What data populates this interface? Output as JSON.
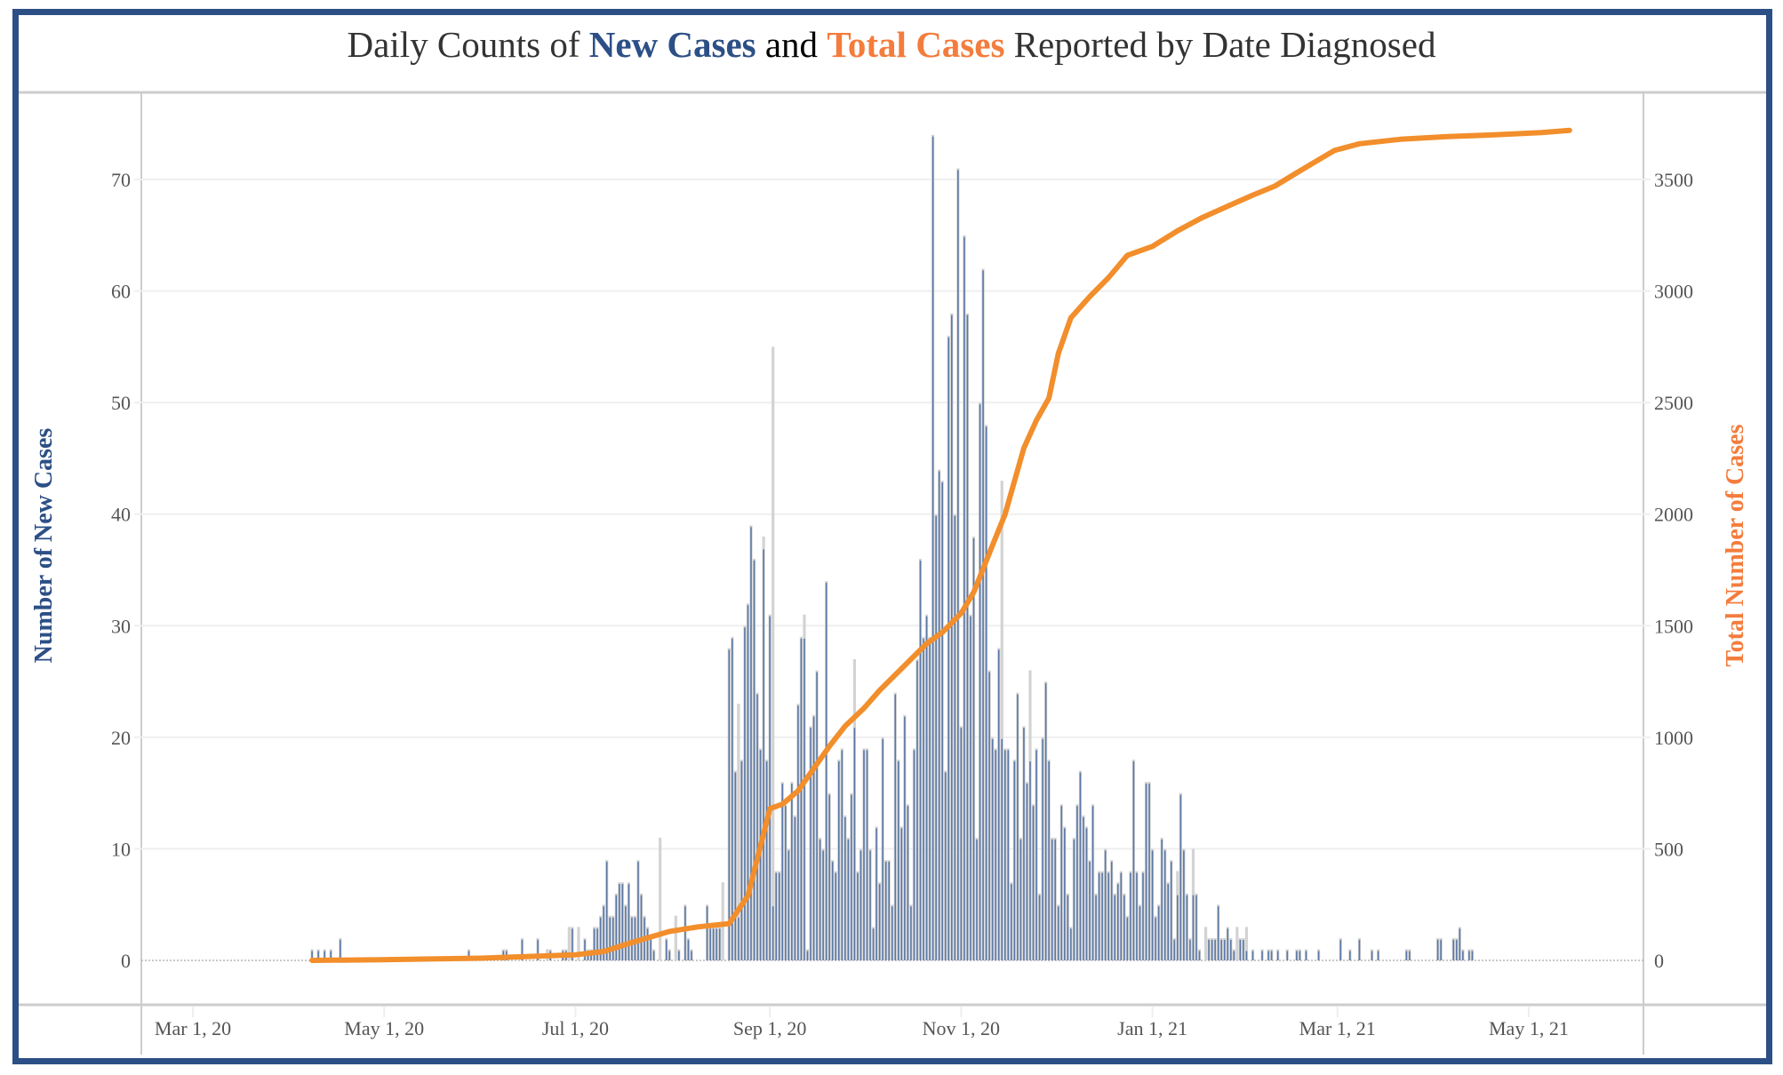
{
  "chart_data": {
    "type": "bar+line",
    "title": {
      "prefix": "Daily Counts of ",
      "new_cases": "New Cases",
      "and": " and ",
      "total_cases": "Total Cases",
      "suffix": " Reported by Date Diagnosed"
    },
    "ylabel_left": "Number of New Cases",
    "ylabel_right": "Total Number of Cases",
    "ylim_left": [
      -7,
      74
    ],
    "ylim_right": [
      -350,
      3700
    ],
    "yticks_left": [
      "0",
      "10",
      "20",
      "30",
      "40",
      "50",
      "60",
      "70"
    ],
    "yticks_right": [
      "0",
      "500",
      "1000",
      "1500",
      "2000",
      "2500",
      "3000",
      "3500"
    ],
    "xticks": [
      "Mar 1, 20",
      "May 1, 20",
      "Jul 1, 20",
      "Sep 1, 20",
      "Nov 1, 20",
      "Jan 1, 21",
      "Mar 1, 21",
      "May 1, 21"
    ],
    "xtick_day_offsets": [
      0,
      61,
      122,
      184,
      245,
      306,
      365,
      426
    ],
    "x_origin": "2020-03-01",
    "grid": true,
    "colors": {
      "new_cases_bar": "#5b78a6",
      "bar_background": "#d3d3d3",
      "total_line": "#f28e2b",
      "title_blue": "#2c4f86",
      "title_orange": "#f47c3c",
      "frame": "#2c4f86"
    },
    "series": [
      {
        "name": "New Cases",
        "kind": "bar",
        "start_day_offset": 38,
        "values": [
          1,
          0,
          1,
          0,
          1,
          0,
          1,
          0,
          0,
          2,
          0,
          0,
          0,
          0,
          0,
          0,
          0,
          0,
          0,
          0,
          0,
          0,
          0,
          0,
          0,
          0,
          0,
          0,
          0,
          0,
          0,
          0,
          0,
          0,
          0,
          0,
          0,
          0,
          0,
          0,
          0,
          0,
          0,
          0,
          0,
          0,
          0,
          0,
          0,
          0,
          1,
          0,
          0,
          0,
          0,
          0,
          0,
          0,
          0,
          0,
          0,
          1,
          1,
          0,
          0,
          0,
          0,
          2,
          0,
          0,
          0,
          0,
          2,
          0,
          0,
          0,
          1,
          0,
          0,
          0,
          1,
          1,
          0,
          3,
          0,
          0,
          0,
          2,
          1,
          1,
          3,
          3,
          4,
          5,
          9,
          4,
          4,
          6,
          7,
          7,
          5,
          7,
          4,
          4,
          9,
          6,
          4,
          3,
          2,
          1,
          0,
          0,
          0,
          2,
          1,
          0,
          0,
          1,
          0,
          5,
          2,
          1,
          0,
          0,
          0,
          0,
          5,
          3,
          3,
          3,
          3,
          0,
          0,
          28,
          29,
          17,
          4,
          18,
          30,
          32,
          39,
          36,
          24,
          19,
          37,
          18,
          31,
          5,
          8,
          8,
          16,
          14,
          10,
          16,
          13,
          23,
          29,
          29,
          1,
          21,
          22,
          26,
          11,
          10,
          34,
          15,
          9,
          8,
          18,
          19,
          13,
          11,
          15,
          21,
          8,
          10,
          19,
          19,
          10,
          3,
          12,
          7,
          20,
          9,
          9,
          5,
          24,
          18,
          12,
          22,
          14,
          5,
          19,
          27,
          36,
          29,
          31,
          29,
          74,
          40,
          44,
          43,
          17,
          56,
          58,
          40,
          71,
          21,
          65,
          58,
          31,
          38,
          11,
          50,
          62,
          48,
          26,
          20,
          19,
          28,
          20,
          19,
          19,
          7,
          18,
          24,
          11,
          21,
          16,
          18,
          14,
          19,
          6,
          20,
          25,
          18,
          11,
          11,
          5,
          14,
          12,
          6,
          3,
          11,
          14,
          17,
          13,
          12,
          9,
          14,
          6,
          8,
          8,
          10,
          8,
          9,
          6,
          7,
          8,
          6,
          4,
          8,
          18,
          8,
          5,
          8,
          16,
          16,
          10,
          4,
          5,
          11,
          10,
          7,
          9,
          2,
          6,
          15,
          10,
          6,
          2,
          6,
          6,
          1,
          0,
          0,
          2,
          2,
          2,
          5,
          2,
          2,
          3,
          2,
          1,
          0,
          2,
          2,
          1,
          0,
          1,
          0,
          0,
          1,
          0,
          1,
          1,
          0,
          1,
          0,
          0,
          1,
          0,
          0,
          1,
          1,
          0,
          1,
          0,
          0,
          0,
          1,
          0,
          0,
          0,
          0,
          0,
          0,
          2,
          0,
          0,
          1,
          0,
          0,
          2,
          0,
          0,
          0,
          1,
          0,
          1,
          0,
          0,
          0,
          0,
          0,
          0,
          0,
          0,
          1,
          1,
          0,
          0,
          0,
          0,
          0,
          0,
          0,
          0,
          2,
          2,
          0,
          0,
          0,
          2,
          2,
          3,
          1,
          0,
          1,
          1
        ]
      },
      {
        "name": "Gray Bars",
        "kind": "bar",
        "start_day_offset": 38,
        "values": [
          1,
          0,
          1,
          0,
          1,
          0,
          1,
          0,
          0,
          2,
          0,
          0,
          0,
          0,
          0,
          0,
          0,
          0,
          0,
          0,
          0,
          0,
          0,
          0,
          0,
          0,
          0,
          0,
          0,
          0,
          0,
          0,
          0,
          0,
          0,
          0,
          0,
          0,
          0,
          0,
          0,
          0,
          0,
          0,
          0,
          0,
          0,
          0,
          0,
          0,
          1,
          0,
          0,
          0,
          0,
          0,
          0,
          0,
          0,
          0,
          0,
          1,
          1,
          0,
          0,
          0,
          0,
          2,
          0,
          0,
          0,
          0,
          2,
          0,
          0,
          1,
          1,
          0,
          0,
          0,
          1,
          1,
          3,
          3,
          0,
          3,
          0,
          2,
          1,
          1,
          3,
          3,
          4,
          5,
          9,
          4,
          4,
          6,
          7,
          7,
          5,
          7,
          4,
          4,
          9,
          6,
          4,
          3,
          2,
          1,
          0,
          11,
          0,
          2,
          1,
          0,
          4,
          1,
          0,
          5,
          2,
          1,
          0,
          0,
          0,
          0,
          5,
          3,
          3,
          3,
          3,
          7,
          0,
          28,
          29,
          17,
          23,
          18,
          30,
          32,
          39,
          36,
          24,
          19,
          38,
          18,
          31,
          55,
          8,
          8,
          16,
          14,
          10,
          16,
          13,
          23,
          29,
          31,
          1,
          21,
          22,
          26,
          11,
          10,
          34,
          15,
          9,
          8,
          18,
          19,
          13,
          11,
          15,
          27,
          8,
          10,
          19,
          19,
          10,
          3,
          12,
          7,
          20,
          9,
          9,
          5,
          24,
          18,
          12,
          22,
          14,
          5,
          19,
          27,
          36,
          29,
          31,
          29,
          74,
          40,
          44,
          43,
          17,
          56,
          58,
          40,
          71,
          21,
          65,
          58,
          31,
          38,
          11,
          50,
          62,
          48,
          26,
          20,
          19,
          28,
          43,
          19,
          19,
          7,
          18,
          24,
          11,
          21,
          16,
          26,
          14,
          19,
          6,
          20,
          25,
          18,
          11,
          11,
          5,
          14,
          12,
          6,
          3,
          11,
          14,
          17,
          13,
          12,
          9,
          14,
          6,
          8,
          8,
          10,
          8,
          9,
          6,
          7,
          8,
          6,
          4,
          8,
          18,
          8,
          5,
          8,
          16,
          16,
          10,
          4,
          5,
          11,
          10,
          7,
          9,
          2,
          8,
          15,
          10,
          6,
          2,
          10,
          6,
          1,
          0,
          3,
          2,
          2,
          2,
          5,
          2,
          2,
          3,
          2,
          1,
          3,
          2,
          2,
          3,
          0,
          1,
          0,
          0,
          1,
          0,
          1,
          1,
          0,
          1,
          0,
          0,
          1,
          0,
          0,
          1,
          1,
          0,
          1,
          0,
          0,
          0,
          1,
          0,
          0,
          0,
          0,
          0,
          0,
          2,
          0,
          0,
          1,
          0,
          0,
          2,
          0,
          0,
          0,
          1,
          0,
          1,
          0,
          0,
          0,
          0,
          0,
          0,
          0,
          0,
          1,
          1,
          0,
          0,
          0,
          0,
          0,
          0,
          0,
          0,
          2,
          2,
          0,
          0,
          0,
          2,
          2,
          3,
          1,
          0,
          1,
          1
        ]
      },
      {
        "name": "Total Cases",
        "kind": "line",
        "points": [
          [
            38,
            0
          ],
          [
            60,
            3
          ],
          [
            92,
            10
          ],
          [
            122,
            25
          ],
          [
            131,
            40
          ],
          [
            140,
            80
          ],
          [
            152,
            130
          ],
          [
            161,
            150
          ],
          [
            171,
            165
          ],
          [
            177,
            290
          ],
          [
            184,
            680
          ],
          [
            188,
            700
          ],
          [
            193,
            760
          ],
          [
            198,
            860
          ],
          [
            203,
            960
          ],
          [
            208,
            1050
          ],
          [
            214,
            1130
          ],
          [
            219,
            1210
          ],
          [
            224,
            1280
          ],
          [
            229,
            1350
          ],
          [
            234,
            1420
          ],
          [
            239,
            1470
          ],
          [
            245,
            1556
          ],
          [
            249,
            1650
          ],
          [
            255,
            1860
          ],
          [
            259,
            2000
          ],
          [
            265,
            2296
          ],
          [
            269,
            2420
          ],
          [
            273,
            2520
          ],
          [
            276,
            2720
          ],
          [
            280,
            2880
          ],
          [
            286,
            2975
          ],
          [
            292,
            3060
          ],
          [
            298,
            3160
          ],
          [
            306,
            3200
          ],
          [
            314,
            3270
          ],
          [
            322,
            3330
          ],
          [
            330,
            3380
          ],
          [
            338,
            3430
          ],
          [
            345,
            3470
          ],
          [
            352,
            3530
          ],
          [
            358,
            3580
          ],
          [
            364,
            3630
          ],
          [
            372,
            3660
          ],
          [
            385,
            3680
          ],
          [
            400,
            3692
          ],
          [
            415,
            3700
          ],
          [
            430,
            3710
          ],
          [
            439,
            3720
          ]
        ]
      }
    ]
  }
}
